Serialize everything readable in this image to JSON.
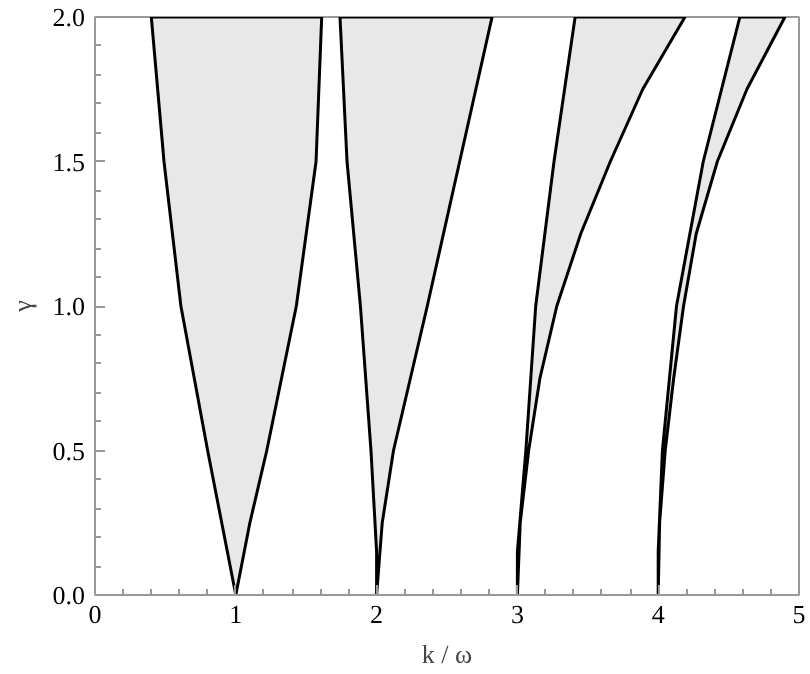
{
  "chart_data": {
    "type": "area",
    "xlabel": "k / ω",
    "ylabel": "γ",
    "xlim": [
      0,
      5
    ],
    "ylim": [
      0,
      2
    ],
    "xticks": [
      0,
      1,
      2,
      3,
      4,
      5
    ],
    "yticks": [
      {
        "value": 0,
        "label": "0.0"
      },
      {
        "value": 0.5,
        "label": "0.5"
      },
      {
        "value": 1,
        "label": "1.0"
      },
      {
        "value": 1.5,
        "label": "1.5"
      },
      {
        "value": 2,
        "label": "2.0"
      }
    ],
    "grid": false,
    "series": [
      {
        "color": "#e8e8e8",
        "x": [
          1.0,
          0.9,
          0.8,
          0.61,
          0.49,
          0.4,
          1.61,
          1.57,
          1.43,
          1.22,
          1.1,
          1.0
        ],
        "values": [
          0,
          0.25,
          0.5,
          1.0,
          1.5,
          2.0,
          2.0,
          1.5,
          1.0,
          0.5,
          0.25,
          0
        ]
      },
      {
        "color": "#e8e8e8",
        "x": [
          2.0,
          2.0,
          1.96,
          1.885,
          1.79,
          1.74,
          2.82,
          2.59,
          2.36,
          2.12,
          2.04,
          2.0
        ],
        "values": [
          0,
          0.15,
          0.5,
          1.0,
          1.5,
          2.0,
          2.0,
          1.5,
          1.0,
          0.5,
          0.25,
          0
        ]
      },
      {
        "color": "#e8e8e8",
        "x": [
          3.0,
          3.0,
          3.06,
          3.13,
          3.26,
          3.41,
          4.19,
          3.89,
          3.66,
          3.45,
          3.28,
          3.16,
          3.08,
          3.02,
          3.0
        ],
        "values": [
          0,
          0.15,
          0.5,
          1.0,
          1.5,
          2.0,
          2.0,
          1.75,
          1.5,
          1.25,
          1.0,
          0.75,
          0.5,
          0.25,
          0
        ]
      },
      {
        "color": "#e8e8e8",
        "x": [
          4.0,
          4.0,
          4.03,
          4.13,
          4.32,
          4.58,
          4.9,
          4.63,
          4.42,
          4.27,
          4.18,
          4.11,
          4.05,
          4.01,
          4.0
        ],
        "values": [
          0,
          0.15,
          0.5,
          1.0,
          1.5,
          2.0,
          2.0,
          1.75,
          1.5,
          1.25,
          1.0,
          0.75,
          0.5,
          0.25,
          0
        ]
      }
    ]
  }
}
